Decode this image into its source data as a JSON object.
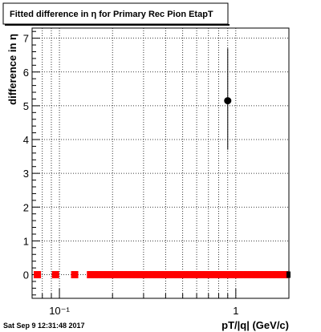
{
  "title": "Fitted difference in  η for Primary Rec Pion EtapT",
  "timestamp": "Sat Sep  9 12:31:48 2017",
  "chart_data": {
    "type": "scatter",
    "title": "Fitted difference in  η for Primary Rec Pion EtapT",
    "xlabel": "pT/|q| (GeV/c)",
    "ylabel": "difference in  η",
    "x_scale": "log",
    "xlim": [
      0.07,
      2.0
    ],
    "ylim": [
      -0.7,
      7.3
    ],
    "grid": true,
    "x_major_ticks": [
      {
        "value": 0.1,
        "label": "10⁻¹"
      },
      {
        "value": 1,
        "label": "1"
      }
    ],
    "y_ticks": [
      0,
      1,
      2,
      3,
      4,
      5,
      6,
      7
    ],
    "series": [
      {
        "marker": "circle",
        "color": "#000000",
        "points": [
          {
            "x": 0.9,
            "y": 5.15,
            "yerr_low": 1.45,
            "yerr_high": 1.55
          }
        ]
      },
      {
        "marker": "square",
        "color": "#ff0000",
        "points": [
          {
            "x": 0.075,
            "y": 0
          },
          {
            "x": 0.095,
            "y": 0
          },
          {
            "x": 0.122,
            "y": 0
          },
          {
            "x": 0.15,
            "y": 0
          },
          {
            "x": 0.158,
            "y": 0
          },
          {
            "x": 0.167,
            "y": 0
          },
          {
            "x": 0.176,
            "y": 0
          },
          {
            "x": 0.186,
            "y": 0
          },
          {
            "x": 0.196,
            "y": 0
          },
          {
            "x": 0.207,
            "y": 0
          },
          {
            "x": 0.219,
            "y": 0
          },
          {
            "x": 0.231,
            "y": 0
          },
          {
            "x": 0.244,
            "y": 0
          },
          {
            "x": 0.257,
            "y": 0
          },
          {
            "x": 0.271,
            "y": 0
          },
          {
            "x": 0.286,
            "y": 0
          },
          {
            "x": 0.302,
            "y": 0
          },
          {
            "x": 0.319,
            "y": 0
          },
          {
            "x": 0.337,
            "y": 0
          },
          {
            "x": 0.355,
            "y": 0
          },
          {
            "x": 0.375,
            "y": 0
          },
          {
            "x": 0.396,
            "y": 0
          },
          {
            "x": 0.418,
            "y": 0
          },
          {
            "x": 0.441,
            "y": 0
          },
          {
            "x": 0.465,
            "y": 0
          },
          {
            "x": 0.491,
            "y": 0
          },
          {
            "x": 0.518,
            "y": 0
          },
          {
            "x": 0.547,
            "y": 0
          },
          {
            "x": 0.577,
            "y": 0
          },
          {
            "x": 0.609,
            "y": 0
          },
          {
            "x": 0.643,
            "y": 0
          },
          {
            "x": 0.679,
            "y": 0
          },
          {
            "x": 0.716,
            "y": 0
          },
          {
            "x": 0.756,
            "y": 0
          },
          {
            "x": 0.798,
            "y": 0
          },
          {
            "x": 0.842,
            "y": 0
          },
          {
            "x": 0.889,
            "y": 0
          },
          {
            "x": 0.938,
            "y": 0
          },
          {
            "x": 0.99,
            "y": 0
          },
          {
            "x": 1.045,
            "y": 0
          },
          {
            "x": 1.103,
            "y": 0
          },
          {
            "x": 1.164,
            "y": 0
          },
          {
            "x": 1.229,
            "y": 0
          },
          {
            "x": 1.297,
            "y": 0
          },
          {
            "x": 1.369,
            "y": 0
          },
          {
            "x": 1.445,
            "y": 0
          },
          {
            "x": 1.525,
            "y": 0
          },
          {
            "x": 1.61,
            "y": 0
          },
          {
            "x": 1.7,
            "y": 0
          },
          {
            "x": 1.794,
            "y": 0
          },
          {
            "x": 1.894,
            "y": 0
          }
        ]
      }
    ]
  }
}
